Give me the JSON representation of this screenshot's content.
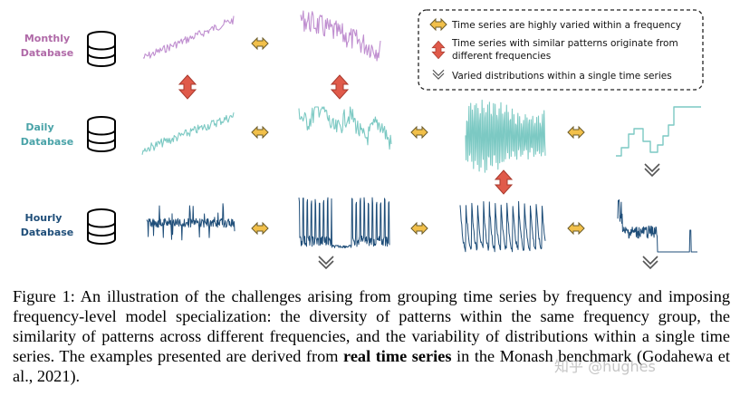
{
  "colors": {
    "monthly": "#b06aa8",
    "monthly_series": "#c08fd0",
    "daily": "#4aa3a8",
    "daily_series": "#7cc9c3",
    "hourly": "#1f4e79",
    "hourly_series": "#1f4e79",
    "arrow_red": "#e05a4a",
    "arrow_yellow": "#f2c04a"
  },
  "rows": [
    {
      "id": "monthly",
      "label_line1": "Monthly",
      "label_line2": "Database"
    },
    {
      "id": "daily",
      "label_line1": "Daily",
      "label_line2": "Database"
    },
    {
      "id": "hourly",
      "label_line1": "Hourly",
      "label_line2": "Database"
    }
  ],
  "legend": {
    "item1": "Time series are highly varied within a frequency",
    "item2_line1": "Time series with similar patterns originate from",
    "item2_line2": "different frequencies",
    "item3": "Varied distributions within a single time series"
  },
  "icons": {
    "database": "database-icon",
    "double_arrow": "double-arrow-icon",
    "vertical_arrow": "vertical-arrow-icon",
    "down_chevron": "double-chevron-down-icon"
  },
  "caption": {
    "part1": "Figure 1: An illustration of the challenges arising from grouping time series by frequency and imposing frequency-level model specialization: the diversity of patterns within the same frequency group, the similarity of patterns across different frequencies, and the variability of distributions within a single time series. The examples presented are derived from ",
    "bold": "real time series",
    "part2": " in the Monash benchmark (Godahewa et al., 2021)."
  },
  "watermark": "知乎 @hughes"
}
